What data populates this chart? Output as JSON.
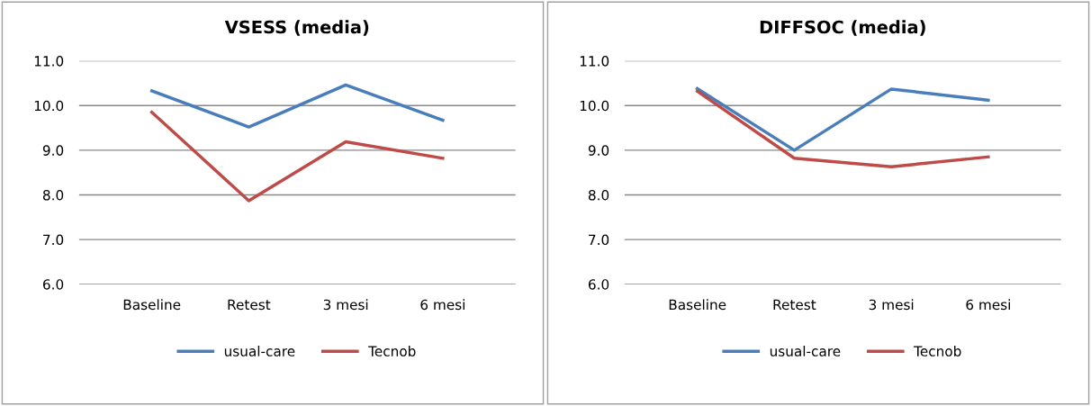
{
  "chart_data": [
    {
      "type": "line",
      "title": "VSESS (media)",
      "categories": [
        "Baseline",
        "Retest",
        "3 mesi",
        "6 mesi"
      ],
      "ylim": [
        6.0,
        11.0
      ],
      "yticks": [
        {
          "value": 6,
          "label": "6.0"
        },
        {
          "value": 7,
          "label": "7.0"
        },
        {
          "value": 8,
          "label": "8.0"
        },
        {
          "value": 9,
          "label": "9.0"
        },
        {
          "value": 10,
          "label": "10.0"
        },
        {
          "value": 11,
          "label": "11.0"
        }
      ],
      "grid": "y",
      "legend": "bottom",
      "marker": "none",
      "series": [
        {
          "name": "usual-care",
          "color": "#4a7ebb",
          "values": [
            10.33,
            9.52,
            10.46,
            9.67
          ]
        },
        {
          "name": "Tecnob",
          "color": "#be4b48",
          "values": [
            9.85,
            7.87,
            9.19,
            8.82
          ]
        }
      ]
    },
    {
      "type": "line",
      "title": "DIFFSOC (media)",
      "categories": [
        "Baseline",
        "Retest",
        "3 mesi",
        "6 mesi"
      ],
      "ylim": [
        6.0,
        11.0
      ],
      "yticks": [
        {
          "value": 6,
          "label": "6.0"
        },
        {
          "value": 7,
          "label": "7.0"
        },
        {
          "value": 8,
          "label": "8.0"
        },
        {
          "value": 9,
          "label": "9.0"
        },
        {
          "value": 10,
          "label": "10.0"
        },
        {
          "value": 11,
          "label": "11.0"
        }
      ],
      "grid": "y",
      "legend": "bottom",
      "marker": "none",
      "series": [
        {
          "name": "usual-care",
          "color": "#4a7ebb",
          "values": [
            10.38,
            9.0,
            10.37,
            10.12
          ]
        },
        {
          "name": "Tecnob",
          "color": "#be4b48",
          "values": [
            10.32,
            8.82,
            8.63,
            8.85
          ]
        }
      ]
    }
  ]
}
